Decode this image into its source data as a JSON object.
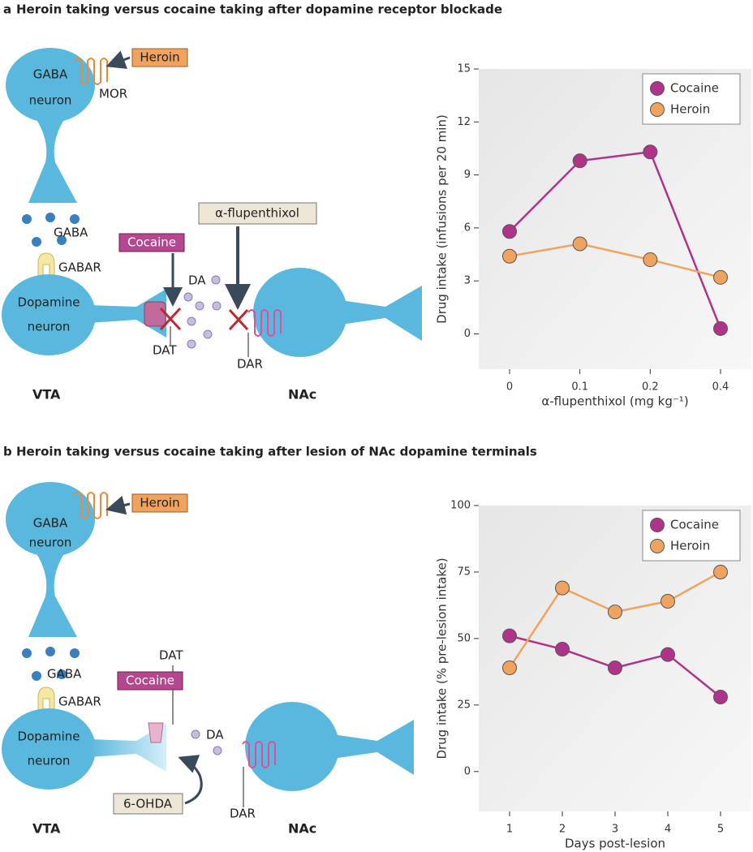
{
  "panels": [
    {
      "letter": "a",
      "title": "Heroin taking versus cocaine taking after dopamine receptor blockade",
      "diagram": {
        "heroin": "Heroin",
        "gaba_neuron": [
          "GABA",
          "neuron"
        ],
        "mor": "MOR",
        "gaba": "GABA",
        "gabar": "GABAR",
        "cocaine": "Cocaine",
        "drug": "α-flupenthixol",
        "da": "DA",
        "dopamine_neuron": [
          "Dopamine",
          "neuron"
        ],
        "dat": "DAT",
        "dar": "DAR",
        "vta": "VTA",
        "nac": "NAc"
      }
    },
    {
      "letter": "b",
      "title": "Heroin taking versus cocaine taking after lesion of NAc dopamine terminals",
      "diagram": {
        "heroin": "Heroin",
        "gaba_neuron": [
          "GABA",
          "neuron"
        ],
        "gaba": "GABA",
        "gabar": "GABAR",
        "cocaine": "Cocaine",
        "dat": "DAT",
        "da": "DA",
        "dopamine_neuron": [
          "Dopamine",
          "neuron"
        ],
        "lesion": "6-OHDA",
        "dar": "DAR",
        "vta": "VTA",
        "nac": "NAc"
      }
    }
  ],
  "chart_data": [
    {
      "type": "line",
      "categories": [
        "0",
        "0.1",
        "0.2",
        "0.4"
      ],
      "x_label": "α-flupenthixol (mg kg⁻¹)",
      "y_label": "Drug intake (infusions per 20 min)",
      "ylim": [
        -2,
        15
      ],
      "yticks": [
        0,
        3,
        6,
        9,
        12,
        15
      ],
      "legend": "upper right",
      "series": [
        {
          "name": "Cocaine",
          "color": "#b0338a",
          "values": [
            5.8,
            9.8,
            10.3,
            0.3
          ]
        },
        {
          "name": "Heroin",
          "color": "#f0a35e",
          "values": [
            4.4,
            5.1,
            4.2,
            3.2
          ]
        }
      ]
    },
    {
      "type": "line",
      "categories": [
        "1",
        "2",
        "3",
        "4",
        "5"
      ],
      "x_label": "Days post-lesion",
      "y_label": "Drug intake (% pre-lesion intake)",
      "ylim": [
        -15,
        100
      ],
      "yticks": [
        0,
        25,
        50,
        75,
        100
      ],
      "legend": "upper right",
      "series": [
        {
          "name": "Cocaine",
          "color": "#b0338a",
          "values": [
            51,
            46,
            39,
            44,
            28
          ]
        },
        {
          "name": "Heroin",
          "color": "#f0a35e",
          "values": [
            39,
            69,
            60,
            64,
            75
          ]
        }
      ]
    }
  ]
}
